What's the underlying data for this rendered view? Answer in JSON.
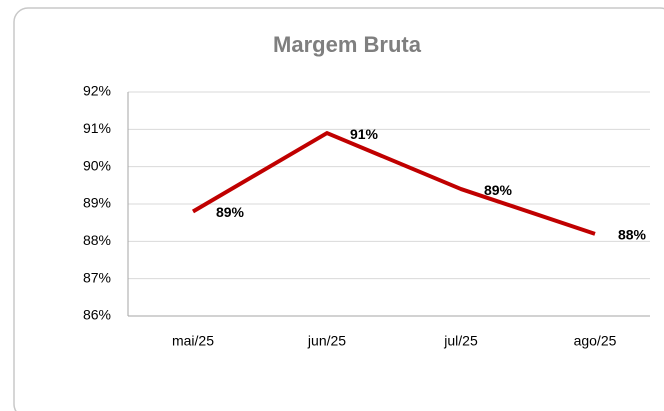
{
  "chart_data": {
    "type": "line",
    "title": "Margem Bruta",
    "categories": [
      "mai/25",
      "jun/25",
      "jul/25",
      "ago/25"
    ],
    "series": [
      {
        "name": "Margem Bruta",
        "color": "#c00000",
        "values": [
          88.8,
          90.9,
          89.4,
          88.2
        ],
        "value_labels": [
          "89%",
          "91%",
          "89%",
          "88%"
        ]
      }
    ],
    "ylim": [
      86,
      92
    ],
    "yticks": [
      {
        "value": 86,
        "label": "86%"
      },
      {
        "value": 87,
        "label": "87%"
      },
      {
        "value": 88,
        "label": "88%"
      },
      {
        "value": 89,
        "label": "89%"
      },
      {
        "value": 90,
        "label": "90%"
      },
      {
        "value": 91,
        "label": "91%"
      },
      {
        "value": 92,
        "label": "92%"
      }
    ],
    "grid": true
  }
}
